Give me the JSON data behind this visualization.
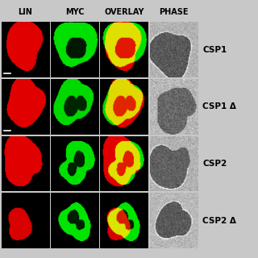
{
  "title": "",
  "col_labels": [
    "LIN",
    "MYC",
    "OVERLAY",
    "PHASE"
  ],
  "row_labels": [
    "CSP1",
    "CSP1 Δ",
    "CSP2",
    "CSP2 Δ"
  ],
  "n_rows": 4,
  "n_cols": 4,
  "col_label_fontsize": 7,
  "row_label_fontsize": 7.5,
  "background": "#c8c8c8",
  "figure_bg": "#c8c8c8",
  "label_color": "#000000"
}
